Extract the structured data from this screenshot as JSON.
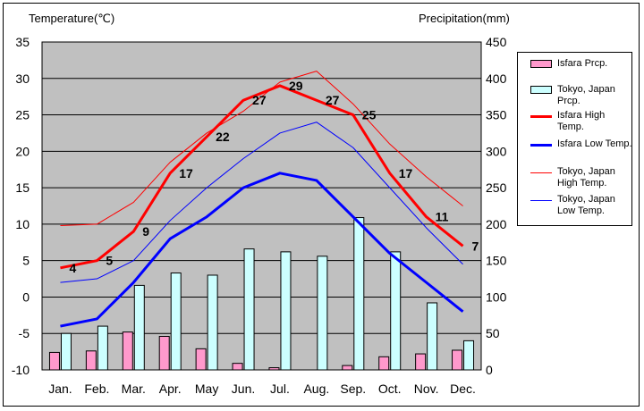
{
  "chart_data": {
    "type": "bar+line",
    "categories": [
      "Jan.",
      "Feb.",
      "Mar.",
      "Apr.",
      "May",
      "Jun.",
      "Jul.",
      "Aug.",
      "Sep.",
      "Oct.",
      "Nov.",
      "Dec."
    ],
    "left_axis": {
      "title": "Temperature(℃)",
      "min": -10,
      "max": 35,
      "ticks": [
        35,
        30,
        25,
        20,
        15,
        10,
        5,
        0,
        -5,
        -10
      ]
    },
    "right_axis": {
      "title": "Precipitation(mm)",
      "min": 0,
      "max": 450,
      "ticks": [
        450,
        400,
        350,
        300,
        250,
        200,
        150,
        100,
        50,
        0
      ]
    },
    "grid": true,
    "legend_position": "right",
    "bar_series": [
      {
        "name": "Isfara Prcp.",
        "color": "#ff99cc",
        "values": [
          24,
          26,
          52,
          46,
          29,
          9,
          3,
          0,
          6,
          18,
          22,
          27
        ]
      },
      {
        "name": "Tokyo, Japan Prcp.",
        "color": "#ccffff",
        "values": [
          50,
          60,
          116,
          133,
          130,
          166,
          162,
          156,
          209,
          162,
          92,
          40
        ]
      }
    ],
    "line_series": [
      {
        "name": "Isfara High Temp.",
        "color": "#ff0000",
        "width": 3,
        "values": [
          4,
          5,
          9,
          17,
          22,
          27,
          29,
          27,
          25,
          17,
          11,
          7
        ]
      },
      {
        "name": "Isfara Low Temp.",
        "color": "#0000ff",
        "width": 3,
        "values": [
          -4,
          -3,
          2,
          8,
          11,
          15,
          17,
          16,
          11,
          6,
          2,
          -2
        ]
      },
      {
        "name": "Tokyo, Japan High Temp.",
        "color": "#ff0000",
        "width": 1,
        "values": [
          9.8,
          10,
          13,
          18.5,
          22.5,
          25.5,
          29.5,
          31,
          26.5,
          21,
          16.5,
          12.5
        ]
      },
      {
        "name": "Tokyo, Japan Low Temp.",
        "color": "#0000ff",
        "width": 1,
        "values": [
          2,
          2.5,
          5,
          10.5,
          15,
          19,
          22.5,
          24,
          20.5,
          15,
          9.5,
          4.5
        ]
      }
    ],
    "data_labels": {
      "series": "Isfara High Temp.",
      "values": [
        4,
        5,
        9,
        17,
        22,
        27,
        29,
        27,
        25,
        17,
        11,
        7
      ]
    }
  },
  "legend": [
    {
      "text": "Isfara Prcp.",
      "kind": "bar",
      "color": "#ff99cc"
    },
    {
      "text": "Tokyo, Japan Prcp.",
      "kind": "bar",
      "color": "#ccffff"
    },
    {
      "text": "Isfara High Temp.",
      "kind": "line",
      "color": "#ff0000",
      "width": 3
    },
    {
      "text": "Isfara Low Temp.",
      "kind": "line",
      "color": "#0000ff",
      "width": 3
    },
    {
      "text": "Tokyo, Japan High Temp.",
      "kind": "line",
      "color": "#ff0000",
      "width": 1
    },
    {
      "text": "Tokyo, Japan Low Temp.",
      "kind": "line",
      "color": "#0000ff",
      "width": 1
    }
  ]
}
